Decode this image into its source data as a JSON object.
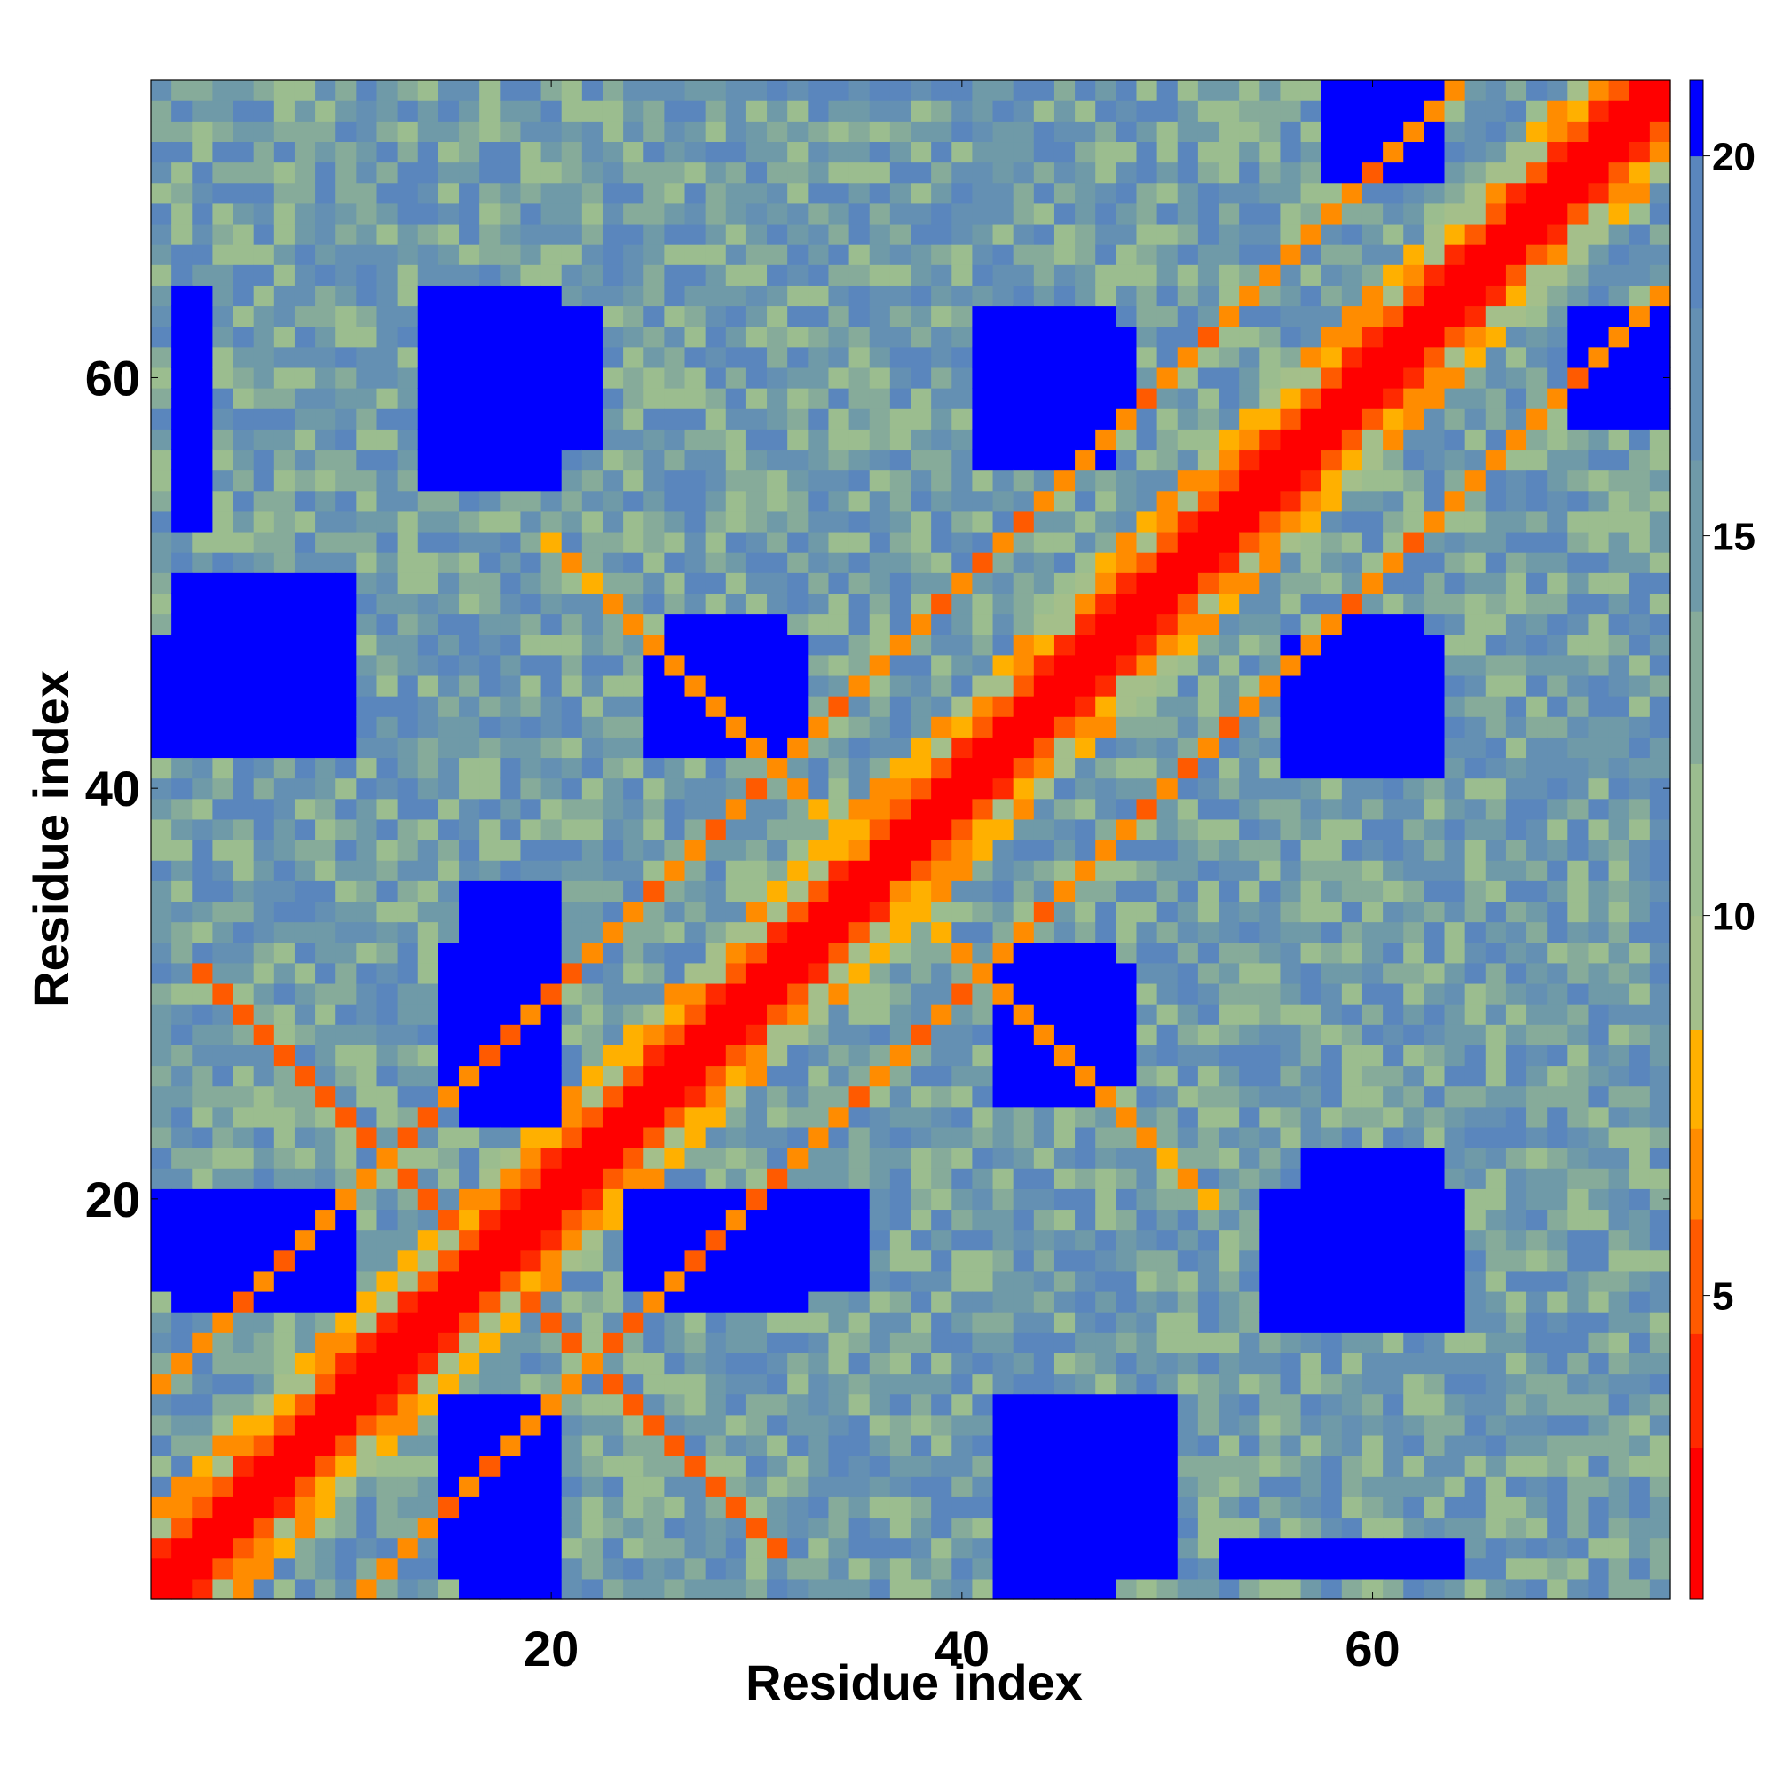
{
  "chart_data": {
    "type": "heatmap",
    "title": "",
    "xlabel": "Residue index",
    "ylabel": "Residue index",
    "n": 74,
    "xlim": [
      0.5,
      74.5
    ],
    "ylim": [
      0.5,
      74.5
    ],
    "x_ticks": [
      20,
      40,
      60
    ],
    "x_tick_labels": [
      "20",
      "40",
      "60"
    ],
    "y_ticks": [
      20,
      40,
      60
    ],
    "y_tick_labels": [
      "20",
      "40",
      "60"
    ],
    "grid": false,
    "colorbar": {
      "placement": "right",
      "range": [
        1,
        21
      ],
      "ticks": [
        5,
        10,
        15,
        20
      ],
      "tick_labels": [
        "5",
        "10",
        "15",
        "20"
      ],
      "colors": [
        {
          "max": 3,
          "color": "#ff0000"
        },
        {
          "max": 4.5,
          "color": "#ff2a00"
        },
        {
          "max": 6,
          "color": "#ff5a00"
        },
        {
          "max": 7.2,
          "color": "#ff8c00"
        },
        {
          "max": 8.5,
          "color": "#ffb000"
        },
        {
          "max": 10,
          "color": "#a4bf8a"
        },
        {
          "max": 12,
          "color": "#9bbd8f"
        },
        {
          "max": 14,
          "color": "#86ab9a"
        },
        {
          "max": 16,
          "color": "#6f9aa8"
        },
        {
          "max": 18,
          "color": "#6490b3"
        },
        {
          "max": 20,
          "color": "#5a86bd"
        },
        {
          "max": 99,
          "color": "#0000ff"
        }
      ]
    },
    "contact_bands": [
      {
        "type": "anti",
        "sum": 34,
        "from": 3,
        "to": 31,
        "value": 6
      },
      {
        "type": "diag",
        "offset": 10,
        "from": 1,
        "to": 64,
        "value": 7
      },
      {
        "type": "anti",
        "sum": 72,
        "from": 20,
        "to": 52,
        "value": 7.5
      }
    ],
    "far_regions": [
      {
        "x": [
          2,
          10
        ],
        "y": [
          42,
          50
        ],
        "value": 21
      },
      {
        "x": [
          2,
          10
        ],
        "y": [
          15,
          19
        ],
        "value": 21
      },
      {
        "x": [
          14,
          20
        ],
        "y": [
          55,
          64
        ],
        "value": 21
      },
      {
        "x": [
          16,
          20
        ],
        "y": [
          24,
          35
        ],
        "value": 21
      },
      {
        "x": [
          16,
          20
        ],
        "y": [
          1,
          10
        ],
        "value": 21
      },
      {
        "x": [
          26,
          32
        ],
        "y": [
          15,
          19
        ],
        "value": 21
      },
      {
        "x": [
          26,
          31
        ],
        "y": [
          43,
          48
        ],
        "value": 21
      },
      {
        "x": [
          41,
          47
        ],
        "y": [
          56,
          63
        ],
        "value": 21
      },
      {
        "x": [
          42,
          47
        ],
        "y": [
          25,
          32
        ],
        "value": 21
      },
      {
        "x": [
          42,
          47
        ],
        "y": [
          1,
          9
        ],
        "value": 21
      },
      {
        "x": [
          57,
          63
        ],
        "y": [
          14,
          22
        ],
        "value": 21
      },
      {
        "x": [
          58,
          62
        ],
        "y": [
          41,
          48
        ],
        "value": 21
      },
      {
        "x": [
          58,
          63
        ],
        "y": [
          70,
          74
        ],
        "value": 21
      },
      {
        "x": [
          2,
          3
        ],
        "y": [
          53,
          64
        ],
        "value": 21
      }
    ]
  }
}
